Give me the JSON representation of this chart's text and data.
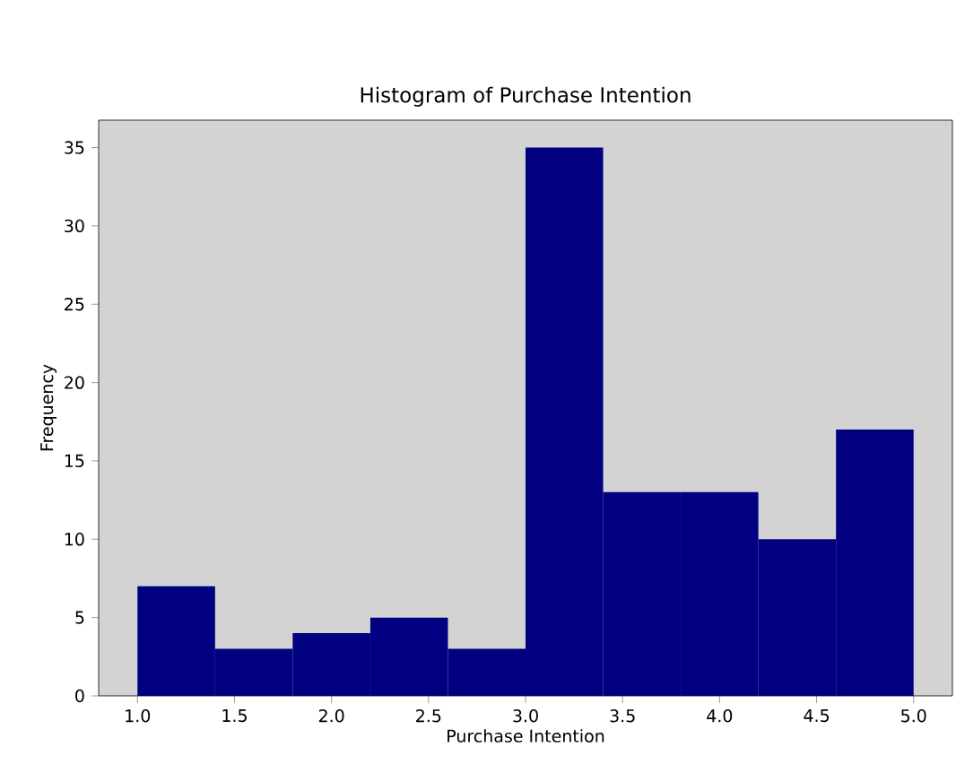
{
  "chart_data": {
    "type": "histogram",
    "title": "Histogram of Purchase Intention",
    "xlabel": "Purchase Intention",
    "ylabel": "Frequency",
    "bins": [
      1.0,
      1.4,
      1.8,
      2.2,
      2.6,
      3.0,
      3.4,
      3.8,
      4.2,
      4.6,
      5.0
    ],
    "values": [
      7,
      3,
      4,
      5,
      3,
      35,
      13,
      13,
      10,
      17
    ],
    "color": "#000080",
    "xlim": [
      0.8,
      5.2
    ],
    "ylim": [
      0,
      36.75
    ],
    "xticks": [
      {
        "value": 1,
        "label": "1.0"
      },
      {
        "value": 1.5,
        "label": "1.5"
      },
      {
        "value": 2,
        "label": "2.0"
      },
      {
        "value": 2.5,
        "label": "2.5"
      },
      {
        "value": 3,
        "label": "3.0"
      },
      {
        "value": 3.5,
        "label": "3.5"
      },
      {
        "value": 4,
        "label": "4.0"
      },
      {
        "value": 4.5,
        "label": "4.5"
      },
      {
        "value": 5,
        "label": "5.0"
      }
    ],
    "yticks": [
      0,
      5,
      10,
      15,
      20,
      25,
      30,
      35
    ],
    "grid": false
  }
}
